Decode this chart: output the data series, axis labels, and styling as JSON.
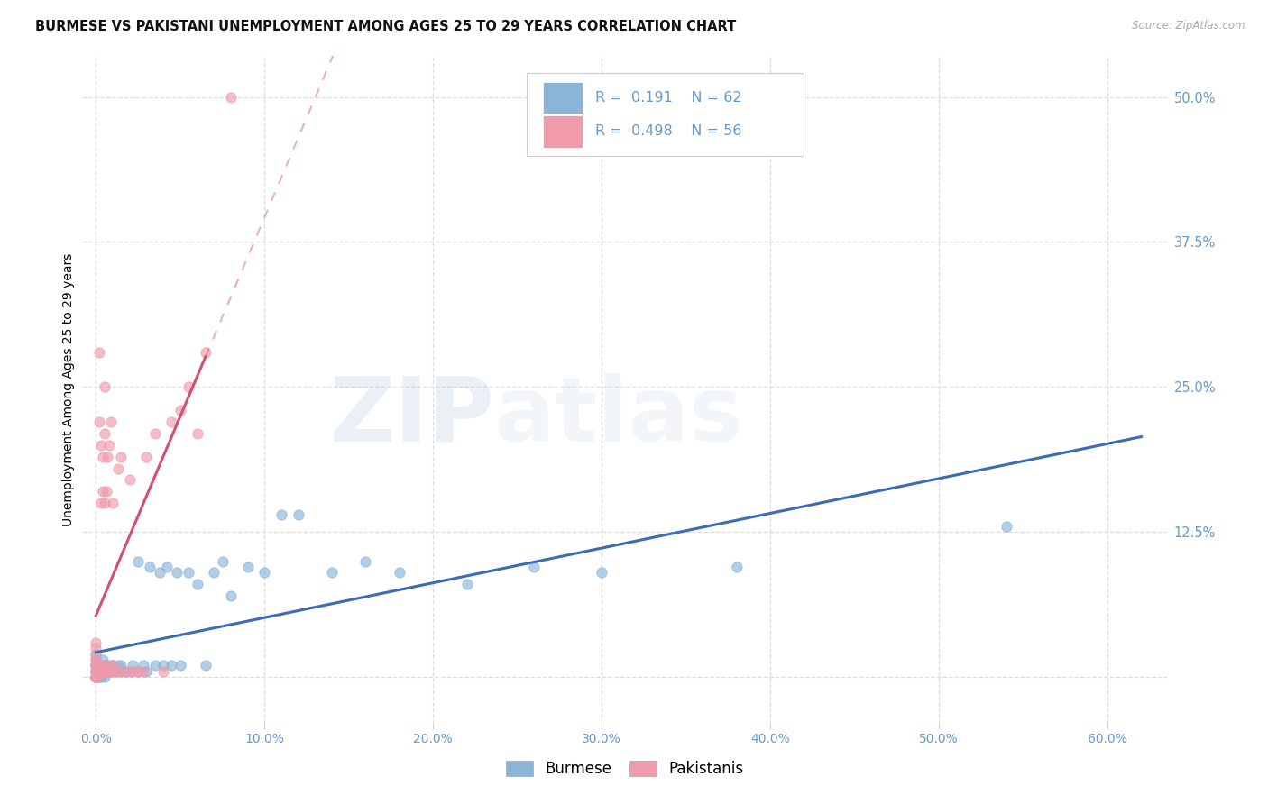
{
  "title": "BURMESE VS PAKISTANI UNEMPLOYMENT AMONG AGES 25 TO 29 YEARS CORRELATION CHART",
  "source": "Source: ZipAtlas.com",
  "ylabel": "Unemployment Among Ages 25 to 29 years",
  "ytick_vals": [
    0.0,
    0.125,
    0.25,
    0.375,
    0.5
  ],
  "ytick_labels": [
    "",
    "12.5%",
    "25.0%",
    "37.5%",
    "50.0%"
  ],
  "xtick_vals": [
    0.0,
    0.1,
    0.2,
    0.3,
    0.4,
    0.5,
    0.6
  ],
  "xtick_labels": [
    "0.0%",
    "10.0%",
    "20.0%",
    "30.0%",
    "40.0%",
    "50.0%",
    "60.0%"
  ],
  "xlim": [
    -0.008,
    0.635
  ],
  "ylim": [
    -0.04,
    0.535
  ],
  "watermark_zip": "ZIP",
  "watermark_atlas": "atlas",
  "burmese_scatter_color": "#8ab4d8",
  "pakistani_scatter_color": "#f09aaa",
  "burmese_line_color": "#3a6db5",
  "pakistani_line_color": "#d45070",
  "axis_tick_color": "#6699cc",
  "grid_color": "#dddddd",
  "background_color": "#ffffff",
  "burmese_R": "0.191",
  "burmese_N": "62",
  "pakistani_R": "0.498",
  "pakistani_N": "56",
  "burmese_x": [
    0.0,
    0.0,
    0.0,
    0.0,
    0.0,
    0.0,
    0.0,
    0.0,
    0.0,
    0.0,
    0.002,
    0.002,
    0.003,
    0.003,
    0.004,
    0.004,
    0.005,
    0.005,
    0.006,
    0.006,
    0.007,
    0.008,
    0.009,
    0.01,
    0.01,
    0.012,
    0.013,
    0.015,
    0.015,
    0.017,
    0.02,
    0.022,
    0.025,
    0.025,
    0.028,
    0.03,
    0.032,
    0.035,
    0.038,
    0.04,
    0.042,
    0.045,
    0.048,
    0.05,
    0.055,
    0.06,
    0.065,
    0.07,
    0.075,
    0.08,
    0.09,
    0.1,
    0.11,
    0.12,
    0.14,
    0.16,
    0.18,
    0.22,
    0.26,
    0.3,
    0.38,
    0.54
  ],
  "burmese_y": [
    0.0,
    0.0,
    0.0,
    0.0,
    0.005,
    0.005,
    0.01,
    0.01,
    0.015,
    0.02,
    0.0,
    0.005,
    0.0,
    0.01,
    0.005,
    0.015,
    0.0,
    0.01,
    0.005,
    0.01,
    0.005,
    0.005,
    0.01,
    0.005,
    0.01,
    0.005,
    0.01,
    0.005,
    0.01,
    0.005,
    0.005,
    0.01,
    0.005,
    0.1,
    0.01,
    0.005,
    0.095,
    0.01,
    0.09,
    0.01,
    0.095,
    0.01,
    0.09,
    0.01,
    0.09,
    0.08,
    0.01,
    0.09,
    0.1,
    0.07,
    0.095,
    0.09,
    0.14,
    0.14,
    0.09,
    0.1,
    0.09,
    0.08,
    0.095,
    0.09,
    0.095,
    0.13
  ],
  "pakistani_x": [
    0.0,
    0.0,
    0.0,
    0.0,
    0.0,
    0.0,
    0.0,
    0.0,
    0.0,
    0.0,
    0.0,
    0.001,
    0.001,
    0.002,
    0.002,
    0.002,
    0.002,
    0.003,
    0.003,
    0.003,
    0.004,
    0.004,
    0.004,
    0.005,
    0.005,
    0.005,
    0.005,
    0.005,
    0.006,
    0.006,
    0.007,
    0.007,
    0.008,
    0.008,
    0.009,
    0.009,
    0.01,
    0.01,
    0.012,
    0.013,
    0.015,
    0.015,
    0.018,
    0.02,
    0.022,
    0.025,
    0.028,
    0.03,
    0.035,
    0.04,
    0.045,
    0.05,
    0.055,
    0.06,
    0.065,
    0.08
  ],
  "pakistani_y": [
    0.0,
    0.0,
    0.0,
    0.005,
    0.005,
    0.01,
    0.01,
    0.015,
    0.02,
    0.025,
    0.03,
    0.0,
    0.005,
    0.005,
    0.01,
    0.22,
    0.28,
    0.005,
    0.15,
    0.2,
    0.005,
    0.16,
    0.19,
    0.005,
    0.01,
    0.15,
    0.21,
    0.25,
    0.01,
    0.16,
    0.005,
    0.19,
    0.005,
    0.2,
    0.005,
    0.22,
    0.01,
    0.15,
    0.005,
    0.18,
    0.005,
    0.19,
    0.005,
    0.17,
    0.005,
    0.005,
    0.005,
    0.19,
    0.21,
    0.005,
    0.22,
    0.23,
    0.25,
    0.21,
    0.28,
    0.5
  ]
}
